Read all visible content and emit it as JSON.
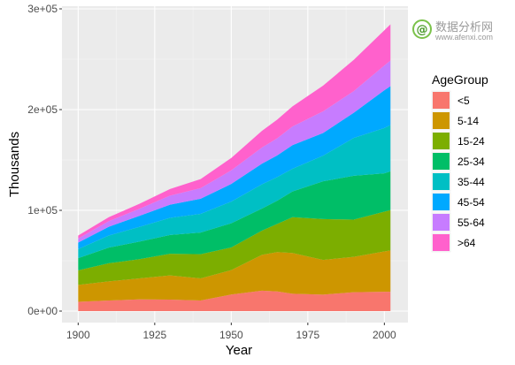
{
  "chart_data": {
    "type": "area",
    "stacked": true,
    "xlabel": "Year",
    "ylabel": "Thousands",
    "xlim": [
      1900,
      2002
    ],
    "ylim": [
      0,
      300000
    ],
    "x_ticks": [
      1900,
      1925,
      1950,
      1975,
      2000
    ],
    "x_tick_labels": [
      "1900",
      "1925",
      "1950",
      "1975",
      "2000"
    ],
    "y_ticks": [
      0,
      100000,
      200000,
      300000
    ],
    "y_tick_labels": [
      "0e+00",
      "1e+05",
      "2e+05",
      "3e+05"
    ],
    "grid": true,
    "legend_title": "AgeGroup",
    "legend_position": "right",
    "x": [
      1900,
      1910,
      1920,
      1930,
      1940,
      1950,
      1960,
      1965,
      1970,
      1980,
      1990,
      2000,
      2002
    ],
    "series": [
      {
        "name": "<5",
        "color": "#F8766D",
        "values": [
          9200,
          10500,
          11600,
          11400,
          10500,
          16400,
          20300,
          19500,
          17200,
          16300,
          18800,
          19200,
          19200
        ]
      },
      {
        "name": "5-14",
        "color": "#CD9600",
        "values": [
          16800,
          19000,
          20900,
          24000,
          22000,
          24300,
          35500,
          39000,
          40500,
          34500,
          35000,
          40000,
          41000
        ]
      },
      {
        "name": "15-24",
        "color": "#7CAE00",
        "values": [
          14500,
          18000,
          19000,
          21500,
          24000,
          22500,
          24000,
          28000,
          35500,
          40500,
          37000,
          39500,
          40000
        ]
      },
      {
        "name": "25-34",
        "color": "#00BE67",
        "values": [
          12000,
          15500,
          17500,
          18700,
          21500,
          24000,
          22000,
          23000,
          25500,
          37500,
          43500,
          38000,
          38500
        ]
      },
      {
        "name": "35-44",
        "color": "#00BFC4",
        "values": [
          9000,
          12000,
          14500,
          17000,
          18500,
          21500,
          24000,
          23500,
          22500,
          25500,
          37500,
          45000,
          46000
        ]
      },
      {
        "name": "45-54",
        "color": "#00A9FF",
        "values": [
          6500,
          8700,
          11000,
          13000,
          15000,
          17500,
          20500,
          21500,
          23500,
          22500,
          25000,
          37500,
          38500
        ]
      },
      {
        "name": "55-64",
        "color": "#C77CFF",
        "values": [
          4000,
          5500,
          7000,
          9000,
          10500,
          13500,
          16000,
          17000,
          18500,
          21500,
          21500,
          24500,
          25500
        ]
      },
      {
        "name": ">64",
        "color": "#FF61CC",
        "values": [
          3000,
          4000,
          5000,
          6600,
          9000,
          12300,
          16500,
          18500,
          20000,
          25500,
          31000,
          35000,
          36000
        ]
      }
    ]
  },
  "watermark": {
    "title": "数据分析网",
    "url": "www.afenxi.com"
  }
}
